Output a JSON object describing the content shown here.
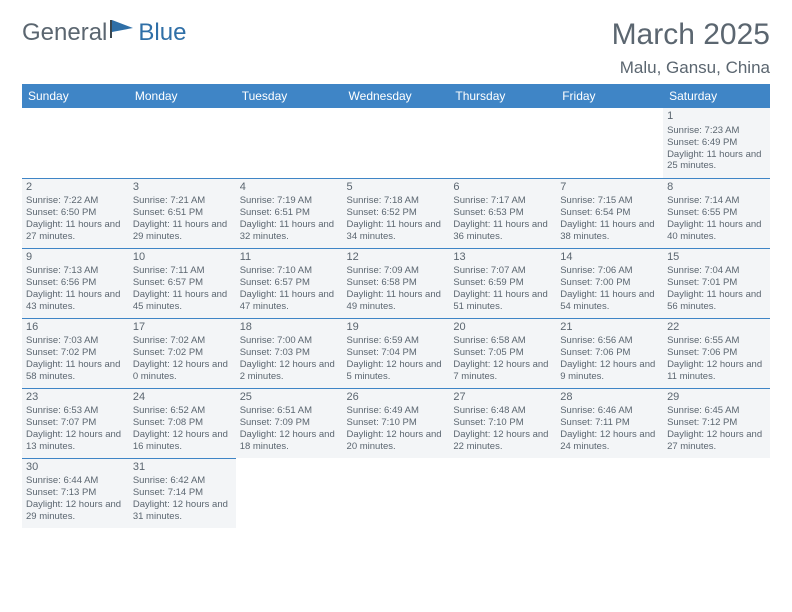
{
  "logo": {
    "text1": "General",
    "text2": "Blue"
  },
  "title": "March 2025",
  "subtitle": "Malu, Gansu, China",
  "colors": {
    "header_bg": "#3f85c6",
    "header_fg": "#ffffff",
    "text": "#5b6670",
    "cell_bg": "#f3f5f7",
    "rule": "#3f85c6",
    "logo_gray": "#5b6670",
    "logo_blue": "#2f6fa7"
  },
  "days": [
    "Sunday",
    "Monday",
    "Tuesday",
    "Wednesday",
    "Thursday",
    "Friday",
    "Saturday"
  ],
  "weeks": [
    [
      null,
      null,
      null,
      null,
      null,
      null,
      {
        "n": "1",
        "sr": "7:23 AM",
        "ss": "6:49 PM",
        "dl": "11 hours and 25 minutes."
      }
    ],
    [
      {
        "n": "2",
        "sr": "7:22 AM",
        "ss": "6:50 PM",
        "dl": "11 hours and 27 minutes."
      },
      {
        "n": "3",
        "sr": "7:21 AM",
        "ss": "6:51 PM",
        "dl": "11 hours and 29 minutes."
      },
      {
        "n": "4",
        "sr": "7:19 AM",
        "ss": "6:51 PM",
        "dl": "11 hours and 32 minutes."
      },
      {
        "n": "5",
        "sr": "7:18 AM",
        "ss": "6:52 PM",
        "dl": "11 hours and 34 minutes."
      },
      {
        "n": "6",
        "sr": "7:17 AM",
        "ss": "6:53 PM",
        "dl": "11 hours and 36 minutes."
      },
      {
        "n": "7",
        "sr": "7:15 AM",
        "ss": "6:54 PM",
        "dl": "11 hours and 38 minutes."
      },
      {
        "n": "8",
        "sr": "7:14 AM",
        "ss": "6:55 PM",
        "dl": "11 hours and 40 minutes."
      }
    ],
    [
      {
        "n": "9",
        "sr": "7:13 AM",
        "ss": "6:56 PM",
        "dl": "11 hours and 43 minutes."
      },
      {
        "n": "10",
        "sr": "7:11 AM",
        "ss": "6:57 PM",
        "dl": "11 hours and 45 minutes."
      },
      {
        "n": "11",
        "sr": "7:10 AM",
        "ss": "6:57 PM",
        "dl": "11 hours and 47 minutes."
      },
      {
        "n": "12",
        "sr": "7:09 AM",
        "ss": "6:58 PM",
        "dl": "11 hours and 49 minutes."
      },
      {
        "n": "13",
        "sr": "7:07 AM",
        "ss": "6:59 PM",
        "dl": "11 hours and 51 minutes."
      },
      {
        "n": "14",
        "sr": "7:06 AM",
        "ss": "7:00 PM",
        "dl": "11 hours and 54 minutes."
      },
      {
        "n": "15",
        "sr": "7:04 AM",
        "ss": "7:01 PM",
        "dl": "11 hours and 56 minutes."
      }
    ],
    [
      {
        "n": "16",
        "sr": "7:03 AM",
        "ss": "7:02 PM",
        "dl": "11 hours and 58 minutes."
      },
      {
        "n": "17",
        "sr": "7:02 AM",
        "ss": "7:02 PM",
        "dl": "12 hours and 0 minutes."
      },
      {
        "n": "18",
        "sr": "7:00 AM",
        "ss": "7:03 PM",
        "dl": "12 hours and 2 minutes."
      },
      {
        "n": "19",
        "sr": "6:59 AM",
        "ss": "7:04 PM",
        "dl": "12 hours and 5 minutes."
      },
      {
        "n": "20",
        "sr": "6:58 AM",
        "ss": "7:05 PM",
        "dl": "12 hours and 7 minutes."
      },
      {
        "n": "21",
        "sr": "6:56 AM",
        "ss": "7:06 PM",
        "dl": "12 hours and 9 minutes."
      },
      {
        "n": "22",
        "sr": "6:55 AM",
        "ss": "7:06 PM",
        "dl": "12 hours and 11 minutes."
      }
    ],
    [
      {
        "n": "23",
        "sr": "6:53 AM",
        "ss": "7:07 PM",
        "dl": "12 hours and 13 minutes."
      },
      {
        "n": "24",
        "sr": "6:52 AM",
        "ss": "7:08 PM",
        "dl": "12 hours and 16 minutes."
      },
      {
        "n": "25",
        "sr": "6:51 AM",
        "ss": "7:09 PM",
        "dl": "12 hours and 18 minutes."
      },
      {
        "n": "26",
        "sr": "6:49 AM",
        "ss": "7:10 PM",
        "dl": "12 hours and 20 minutes."
      },
      {
        "n": "27",
        "sr": "6:48 AM",
        "ss": "7:10 PM",
        "dl": "12 hours and 22 minutes."
      },
      {
        "n": "28",
        "sr": "6:46 AM",
        "ss": "7:11 PM",
        "dl": "12 hours and 24 minutes."
      },
      {
        "n": "29",
        "sr": "6:45 AM",
        "ss": "7:12 PM",
        "dl": "12 hours and 27 minutes."
      }
    ],
    [
      {
        "n": "30",
        "sr": "6:44 AM",
        "ss": "7:13 PM",
        "dl": "12 hours and 29 minutes."
      },
      {
        "n": "31",
        "sr": "6:42 AM",
        "ss": "7:14 PM",
        "dl": "12 hours and 31 minutes."
      },
      null,
      null,
      null,
      null,
      null
    ]
  ],
  "labels": {
    "sunrise": "Sunrise: ",
    "sunset": "Sunset: ",
    "daylight": "Daylight: "
  }
}
